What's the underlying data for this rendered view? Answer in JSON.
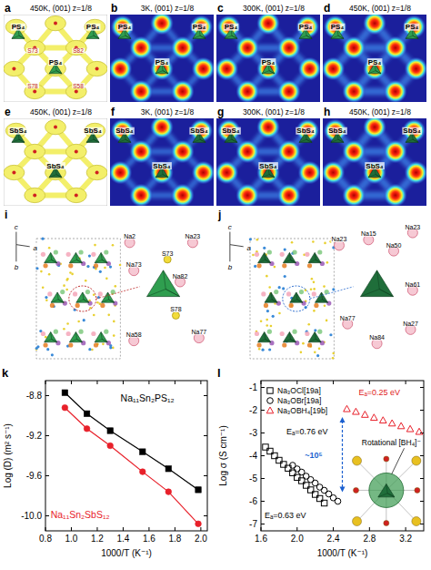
{
  "panels": [
    {
      "letter": "a",
      "title": "450K, (001) z=1/8",
      "labels": [
        "PS₄",
        "PS₄",
        "PS₄",
        "S73",
        "S82",
        "S78",
        "S58"
      ]
    },
    {
      "letter": "b",
      "title": "3K, (001) z=1/8",
      "labels": [
        "PS₄",
        "PS₄",
        "PS₄"
      ]
    },
    {
      "letter": "c",
      "title": "300K, (001) z=1/8",
      "labels": [
        "PS₄",
        "PS₄",
        "PS₄"
      ]
    },
    {
      "letter": "d",
      "title": "450K, (001) z=1/8",
      "labels": [
        "PS₄",
        "PS₄",
        "PS₄"
      ]
    },
    {
      "letter": "e",
      "title": "450K, (001) z=1/8",
      "labels": [
        "SbS₄",
        "SbS₄",
        "SbS₄"
      ]
    },
    {
      "letter": "f",
      "title": "3K, (001) z=1/8",
      "labels": [
        "SbS₄",
        "SbS₄",
        "SbS₄"
      ]
    },
    {
      "letter": "g",
      "title": "300K, (001) z=1/8",
      "labels": [
        "SbS₄",
        "SbS₄",
        "SbS₄"
      ]
    },
    {
      "letter": "h",
      "title": "450K, (001) z=1/8",
      "labels": [
        "SbS₄",
        "SbS₄",
        "SbS₄"
      ]
    }
  ],
  "structures": [
    {
      "letter": "i",
      "labels": [
        "Na2",
        "Na73",
        "Na82",
        "Na23",
        "S73",
        "S78",
        "Na77",
        "Na58",
        "a",
        "b",
        "c"
      ]
    },
    {
      "letter": "j",
      "labels": [
        "Na23",
        "Na15",
        "Na50",
        "Na61",
        "Na77",
        "Na84",
        "Na27",
        "Na23",
        "c",
        "a",
        "b"
      ]
    }
  ],
  "chart_data": [
    {
      "letter": "k",
      "type": "line",
      "x_label": "1000/T (K⁻¹)",
      "y_label": "Log (D) (m² s⁻¹)",
      "x": [
        0.95,
        1.12,
        1.3,
        1.55,
        1.75,
        1.98
      ],
      "xlim": [
        0.8,
        2.05
      ],
      "xticks": [
        0.8,
        {
          "value": 1,
          "label": "1.0"
        },
        1.2,
        1.4,
        1.6,
        1.8,
        {
          "value": 2,
          "label": "2.0"
        }
      ],
      "ylim": [
        -10.15,
        -8.65
      ],
      "yticks": [
        {
          "value": -10,
          "label": "-10.0"
        },
        -9.6,
        -9.2,
        -8.8
      ],
      "series": [
        {
          "name": "Na₁₁Sn₂PS₁₂",
          "color": "#000000",
          "marker": "square",
          "line_style": "solid",
          "values": [
            -8.77,
            -8.98,
            -9.15,
            -9.36,
            -9.53,
            -9.74
          ]
        },
        {
          "name": "Na₁₁Sn₂SbS₁₂",
          "color": "#e8202a",
          "marker": "circle",
          "line_style": "solid",
          "values": [
            -8.92,
            -9.13,
            -9.3,
            -9.56,
            -9.76,
            -10.08
          ]
        }
      ]
    },
    {
      "letter": "l",
      "type": "scatter",
      "x_label": "1000/T (K⁻¹)",
      "y_label": "Log σ (S cm⁻¹)",
      "xlim": [
        1.6,
        3.4
      ],
      "xticks": [
        1.6,
        {
          "value": 2,
          "label": "2.0"
        },
        2.4,
        2.8,
        3.2
      ],
      "ylim": [
        -7.3,
        -0.7
      ],
      "yticks": [
        -7,
        -6,
        -5,
        -4,
        -3,
        -2,
        -1
      ],
      "legend": "upper left",
      "series": [
        {
          "name": "Na₃OCl[19a]",
          "color": "#000000",
          "marker": "square-open",
          "x": [
            1.65,
            1.7,
            1.75,
            1.8,
            1.85,
            1.9,
            1.95,
            2.0,
            2.05,
            2.1,
            2.15,
            2.2,
            2.25,
            2.3
          ],
          "values": [
            -3.62,
            -3.8,
            -4.0,
            -4.2,
            -4.38,
            -4.55,
            -4.75,
            -4.95,
            -5.1,
            -5.3,
            -5.5,
            -5.7,
            -5.88,
            -6.08
          ]
        },
        {
          "name": "Na₃OBr[19a]",
          "color": "#000000",
          "marker": "circle-open",
          "x": [
            1.95,
            2.0,
            2.05,
            2.1,
            2.15,
            2.2,
            2.25,
            2.3,
            2.35,
            2.4,
            2.45
          ],
          "values": [
            -4.42,
            -4.58,
            -4.72,
            -4.9,
            -5.05,
            -5.2,
            -5.38,
            -5.52,
            -5.68,
            -5.85,
            -6.0
          ]
        },
        {
          "name": "Na₃OBH₄[19b]",
          "color": "#e8202a",
          "marker": "triangle-open",
          "x": [
            2.55,
            2.65,
            2.75,
            2.85,
            2.95,
            3.05,
            3.15,
            3.25,
            3.35
          ],
          "values": [
            -1.95,
            -2.07,
            -2.2,
            -2.33,
            -2.45,
            -2.58,
            -2.7,
            -2.83,
            -2.95
          ]
        }
      ],
      "annotations": [
        "Eₐ=0.25 eV",
        "Eₐ=0.76 eV",
        "Eₐ=0.63 eV",
        "~10⁵",
        "Rotational [BH₄]⁻"
      ]
    }
  ]
}
